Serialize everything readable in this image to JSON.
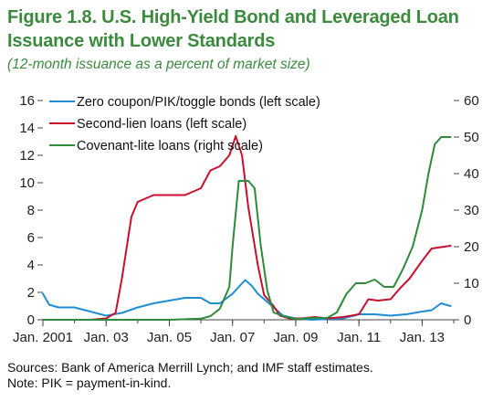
{
  "figure": {
    "title_line1": "Figure 1.8. U.S. High-Yield Bond and Leveraged Loan",
    "title_line2": "Issuance with Lower Standards",
    "subtitle": "(12-month issuance as a percent of market size)",
    "source": "Sources: Bank of America Merrill Lynch; and IMF staff estimates.",
    "note": "Note: PIK = payment-in-kind."
  },
  "colors": {
    "title": "#3b8a3e",
    "zero_coupon": "#1f8dd6",
    "second_lien": "#c8102e",
    "covenant_lite": "#2e8b3a",
    "axis": "#444444"
  },
  "chart_data": {
    "type": "line",
    "x_axis": {
      "min": 2001.0,
      "max": 2014.0,
      "tick_labels": [
        "Jan. 2001",
        "Jan. 03",
        "Jan. 05",
        "Jan. 07",
        "Jan. 09",
        "Jan. 11",
        "Jan. 13"
      ],
      "tick_values": [
        2001.0,
        2003.0,
        2005.0,
        2007.0,
        2009.0,
        2011.0,
        2013.0
      ]
    },
    "left_axis": {
      "min": 0,
      "max": 16,
      "ticks": [
        0,
        2,
        4,
        6,
        8,
        10,
        12,
        14,
        16
      ],
      "tick_labels": [
        "0",
        "2",
        "4",
        "6",
        "8",
        "10",
        "12",
        "14",
        "16"
      ]
    },
    "right_axis": {
      "min": 0,
      "max": 60,
      "ticks": [
        0,
        10,
        20,
        30,
        40,
        50,
        60
      ],
      "tick_labels": [
        "0",
        "10",
        "20",
        "30",
        "40",
        "50",
        "60"
      ]
    },
    "legend_position": "top-left",
    "series": [
      {
        "name": "Zero coupon/PIK/toggle bonds (left scale)",
        "axis": "left",
        "color": "#1f8dd6",
        "x": [
          2001.0,
          2001.2,
          2001.5,
          2002.0,
          2002.5,
          2003.0,
          2003.5,
          2004.0,
          2004.5,
          2005.0,
          2005.5,
          2006.0,
          2006.3,
          2006.6,
          2007.0,
          2007.2,
          2007.4,
          2007.6,
          2007.8,
          2008.0,
          2008.3,
          2008.6,
          2009.0,
          2009.5,
          2010.0,
          2010.5,
          2011.0,
          2011.5,
          2012.0,
          2012.5,
          2013.0,
          2013.3,
          2013.6,
          2013.9
        ],
        "y": [
          1.9,
          1.1,
          0.9,
          0.9,
          0.6,
          0.3,
          0.5,
          0.9,
          1.2,
          1.4,
          1.6,
          1.6,
          1.2,
          1.2,
          1.9,
          2.4,
          2.9,
          2.5,
          1.9,
          1.5,
          0.9,
          0.3,
          0.1,
          0.0,
          0.05,
          0.1,
          0.4,
          0.4,
          0.3,
          0.4,
          0.6,
          0.7,
          1.2,
          1.0
        ]
      },
      {
        "name": "Second-lien loans (left scale)",
        "axis": "left",
        "color": "#c8102e",
        "x": [
          2001.0,
          2002.5,
          2003.0,
          2003.3,
          2003.5,
          2003.8,
          2004.0,
          2004.5,
          2005.0,
          2005.5,
          2006.0,
          2006.3,
          2006.6,
          2006.9,
          2007.1,
          2007.3,
          2007.5,
          2007.8,
          2008.0,
          2008.3,
          2008.5,
          2008.8,
          2009.2,
          2009.6,
          2010.0,
          2010.5,
          2011.0,
          2011.3,
          2011.6,
          2012.0,
          2012.3,
          2012.6,
          2013.0,
          2013.3,
          2013.6,
          2013.9
        ],
        "y": [
          0,
          0,
          0.1,
          0.5,
          3.0,
          7.5,
          8.6,
          9.1,
          9.1,
          9.1,
          9.6,
          10.9,
          11.2,
          12.0,
          13.4,
          12.0,
          8.2,
          4.0,
          1.8,
          1.0,
          0.3,
          0.1,
          0.1,
          0.2,
          0.1,
          0.2,
          0.4,
          1.5,
          1.4,
          1.5,
          2.3,
          3.0,
          4.3,
          5.2,
          5.3,
          5.4
        ]
      },
      {
        "name": "Covenant-lite loans (right scale)",
        "axis": "right",
        "color": "#2e8b3a",
        "x": [
          2001.0,
          2005.0,
          2006.0,
          2006.3,
          2006.6,
          2006.9,
          2007.0,
          2007.2,
          2007.5,
          2007.7,
          2007.9,
          2008.1,
          2008.3,
          2008.6,
          2009.0,
          2009.5,
          2010.0,
          2010.3,
          2010.6,
          2010.9,
          2011.2,
          2011.5,
          2011.8,
          2012.1,
          2012.4,
          2012.7,
          2013.0,
          2013.2,
          2013.4,
          2013.6,
          2013.9
        ],
        "y": [
          0,
          0,
          0.3,
          1.0,
          3.0,
          9.0,
          20.0,
          38.0,
          38.0,
          36.0,
          20.0,
          8.0,
          2.0,
          1.0,
          0.2,
          0.5,
          0.5,
          2.0,
          7.0,
          10.0,
          10.0,
          11.0,
          9.0,
          9.0,
          14.0,
          20.0,
          30.0,
          40.0,
          48.0,
          50.0,
          50.0
        ]
      }
    ]
  }
}
